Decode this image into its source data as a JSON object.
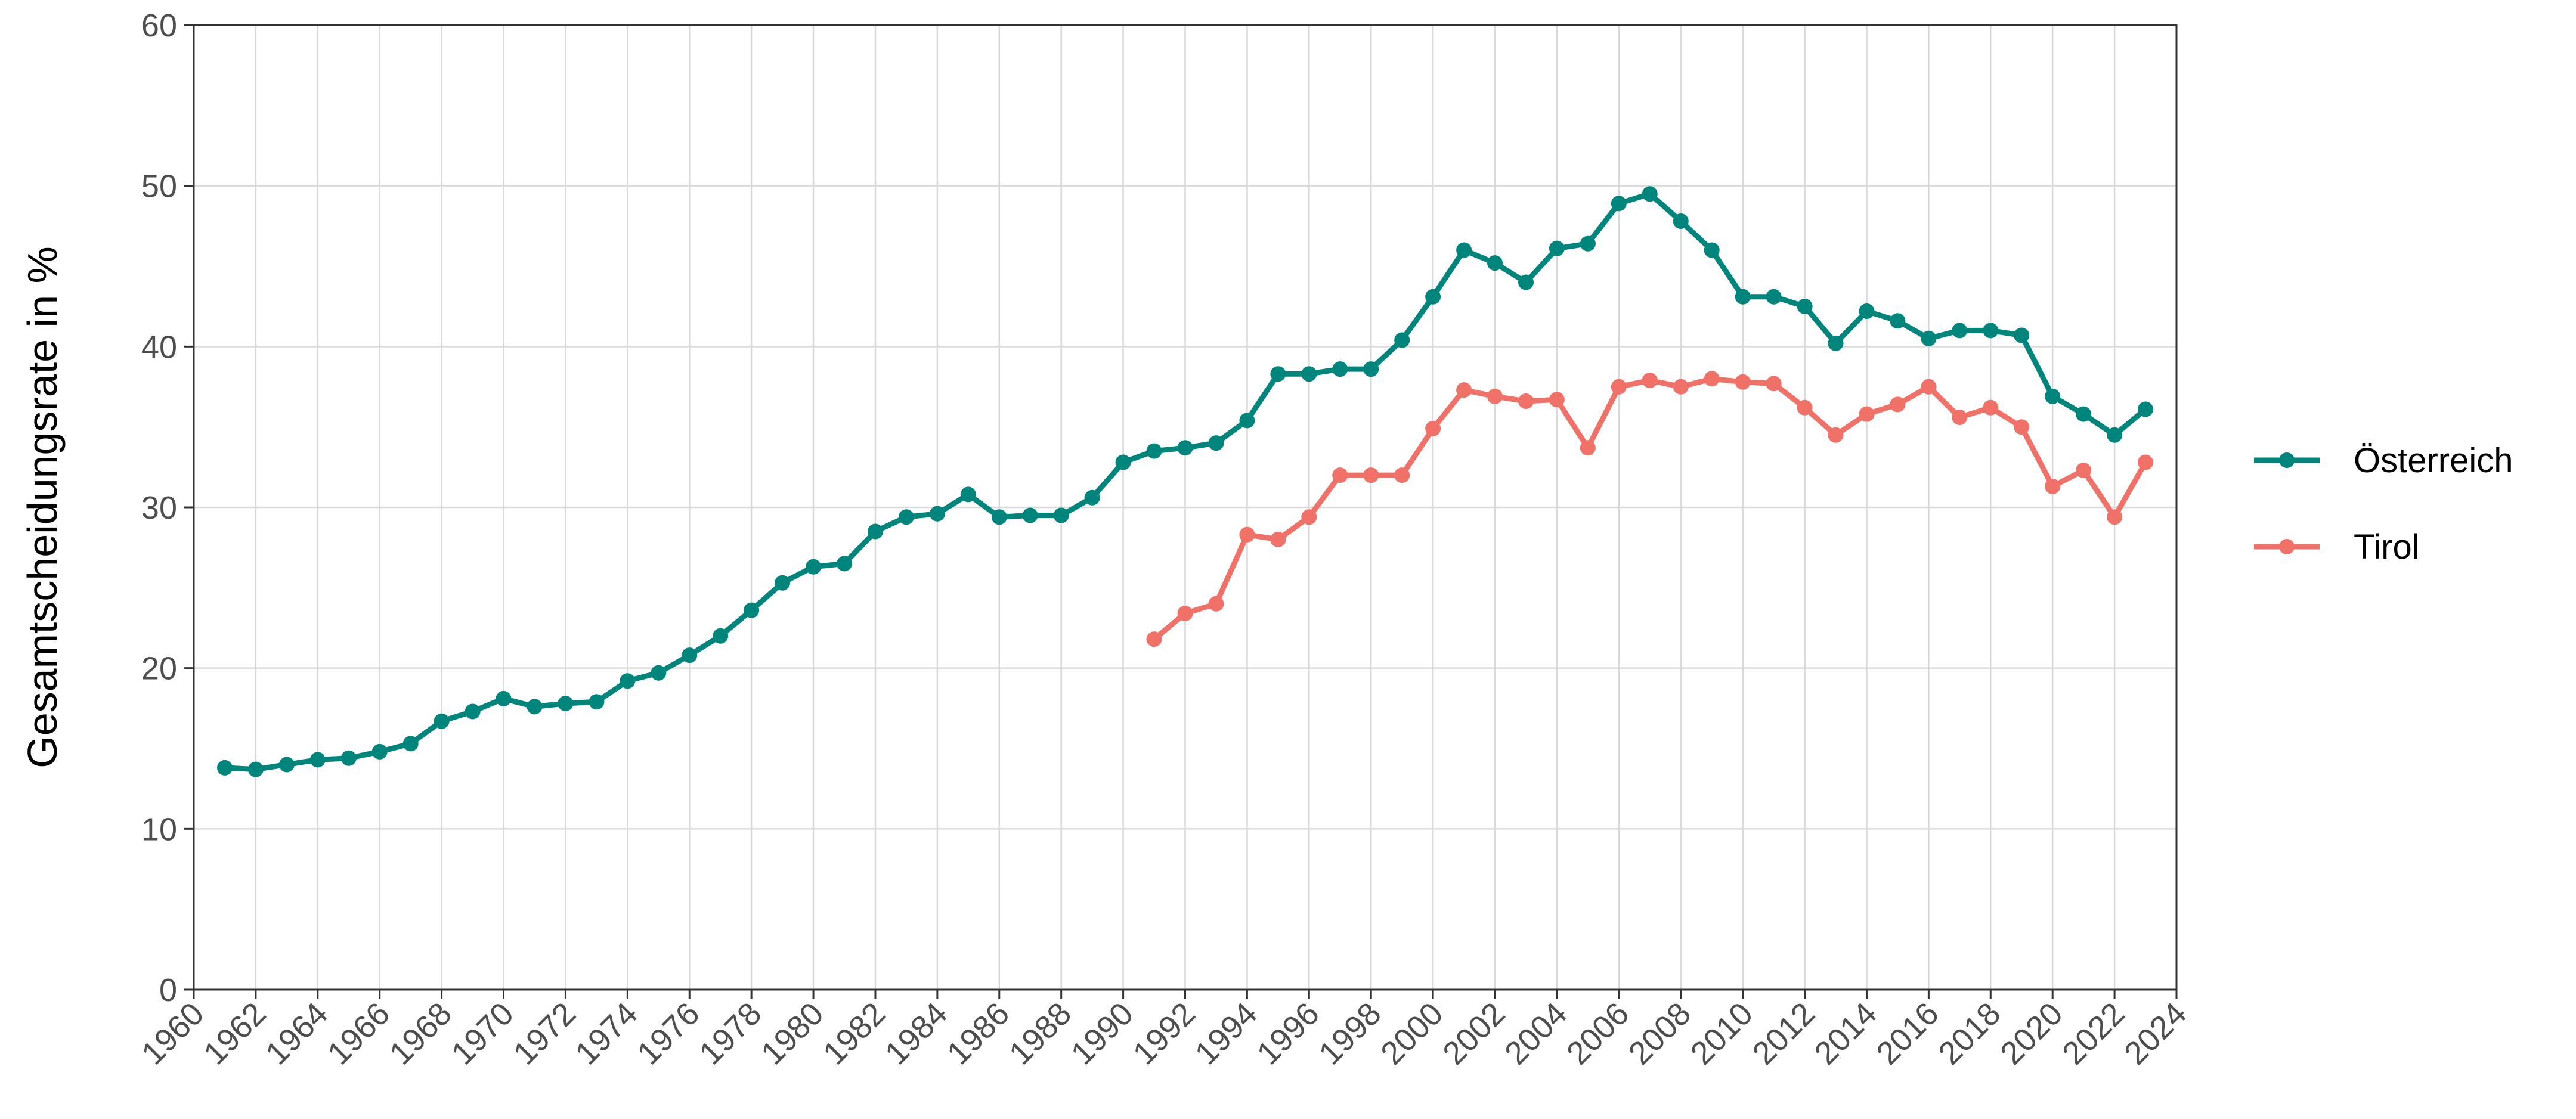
{
  "chart_data": {
    "type": "line",
    "title": "",
    "xlabel": "",
    "ylabel": "Gesamtscheidungsrate in %",
    "xlim": [
      1960,
      2024
    ],
    "ylim": [
      0,
      60
    ],
    "x_ticks": [
      "1960",
      "1962",
      "1964",
      "1966",
      "1968",
      "1970",
      "1972",
      "1974",
      "1976",
      "1978",
      "1980",
      "1982",
      "1984",
      "1986",
      "1988",
      "1990",
      "1992",
      "1994",
      "1996",
      "1998",
      "2000",
      "2002",
      "2004",
      "2006",
      "2008",
      "2010",
      "2012",
      "2014",
      "2016",
      "2018",
      "2020",
      "2022",
      "2024"
    ],
    "y_ticks": [
      "0",
      "10",
      "20",
      "30",
      "40",
      "50",
      "60"
    ],
    "grid": true,
    "legend_position": "right",
    "series": [
      {
        "name": "Österreich",
        "color": "#00857C",
        "points": [
          [
            1961,
            13.8
          ],
          [
            1962,
            13.7
          ],
          [
            1963,
            14.0
          ],
          [
            1964,
            14.3
          ],
          [
            1965,
            14.4
          ],
          [
            1966,
            14.8
          ],
          [
            1967,
            15.3
          ],
          [
            1968,
            16.7
          ],
          [
            1969,
            17.3
          ],
          [
            1970,
            18.1
          ],
          [
            1971,
            17.6
          ],
          [
            1972,
            17.8
          ],
          [
            1973,
            17.9
          ],
          [
            1974,
            19.2
          ],
          [
            1975,
            19.7
          ],
          [
            1976,
            20.8
          ],
          [
            1977,
            22.0
          ],
          [
            1978,
            23.6
          ],
          [
            1979,
            25.3
          ],
          [
            1980,
            26.3
          ],
          [
            1981,
            26.5
          ],
          [
            1982,
            28.5
          ],
          [
            1983,
            29.4
          ],
          [
            1984,
            29.6
          ],
          [
            1985,
            30.8
          ],
          [
            1986,
            29.4
          ],
          [
            1987,
            29.5
          ],
          [
            1988,
            29.5
          ],
          [
            1989,
            30.6
          ],
          [
            1990,
            32.8
          ],
          [
            1991,
            33.5
          ],
          [
            1992,
            33.7
          ],
          [
            1993,
            34.0
          ],
          [
            1994,
            35.4
          ],
          [
            1995,
            38.3
          ],
          [
            1996,
            38.3
          ],
          [
            1997,
            38.6
          ],
          [
            1998,
            38.6
          ],
          [
            1999,
            40.4
          ],
          [
            2000,
            43.1
          ],
          [
            2001,
            46.0
          ],
          [
            2002,
            45.2
          ],
          [
            2003,
            44.0
          ],
          [
            2004,
            46.1
          ],
          [
            2005,
            46.4
          ],
          [
            2006,
            48.9
          ],
          [
            2007,
            49.5
          ],
          [
            2008,
            47.8
          ],
          [
            2009,
            46.0
          ],
          [
            2010,
            43.1
          ],
          [
            2011,
            43.1
          ],
          [
            2012,
            42.5
          ],
          [
            2013,
            40.2
          ],
          [
            2014,
            42.2
          ],
          [
            2015,
            41.6
          ],
          [
            2016,
            40.5
          ],
          [
            2017,
            41.0
          ],
          [
            2018,
            41.0
          ],
          [
            2019,
            40.7
          ],
          [
            2020,
            36.9
          ],
          [
            2021,
            35.8
          ],
          [
            2022,
            34.5
          ],
          [
            2023,
            36.1
          ]
        ]
      },
      {
        "name": "Tirol",
        "color": "#F07167",
        "points": [
          [
            1991,
            21.8
          ],
          [
            1992,
            23.4
          ],
          [
            1993,
            24.0
          ],
          [
            1994,
            28.3
          ],
          [
            1995,
            28.0
          ],
          [
            1996,
            29.4
          ],
          [
            1997,
            32.0
          ],
          [
            1998,
            32.0
          ],
          [
            1999,
            32.0
          ],
          [
            2000,
            34.9
          ],
          [
            2001,
            37.3
          ],
          [
            2002,
            36.9
          ],
          [
            2003,
            36.6
          ],
          [
            2004,
            36.7
          ],
          [
            2005,
            33.7
          ],
          [
            2006,
            37.5
          ],
          [
            2007,
            37.9
          ],
          [
            2008,
            37.5
          ],
          [
            2009,
            38.0
          ],
          [
            2010,
            37.8
          ],
          [
            2011,
            37.7
          ],
          [
            2012,
            36.2
          ],
          [
            2013,
            34.5
          ],
          [
            2014,
            35.8
          ],
          [
            2015,
            36.4
          ],
          [
            2016,
            37.5
          ],
          [
            2017,
            35.6
          ],
          [
            2018,
            36.2
          ],
          [
            2019,
            35.0
          ],
          [
            2020,
            31.3
          ],
          [
            2021,
            32.3
          ],
          [
            2022,
            29.4
          ],
          [
            2023,
            32.8
          ]
        ]
      }
    ]
  }
}
